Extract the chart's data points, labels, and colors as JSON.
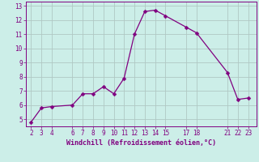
{
  "x": [
    2,
    3,
    4,
    6,
    7,
    8,
    9,
    10,
    11,
    12,
    13,
    14,
    15,
    17,
    18,
    21,
    22,
    23
  ],
  "y": [
    4.8,
    5.8,
    5.9,
    6.0,
    6.8,
    6.8,
    7.3,
    6.8,
    7.9,
    11.0,
    12.6,
    12.7,
    12.3,
    11.5,
    11.1,
    8.3,
    6.4,
    6.5
  ],
  "line_color": "#800080",
  "marker": "D",
  "marker_size": 2.5,
  "bg_color": "#cceee8",
  "grid_color": "#b0c8c4",
  "xlabel": "Windchill (Refroidissement éolien,°C)",
  "xlabel_color": "#800080",
  "tick_color": "#800080",
  "xlim": [
    1.5,
    23.8
  ],
  "ylim": [
    4.5,
    13.3
  ],
  "yticks": [
    5,
    6,
    7,
    8,
    9,
    10,
    11,
    12,
    13
  ],
  "xticks": [
    2,
    3,
    4,
    6,
    7,
    8,
    9,
    10,
    11,
    12,
    13,
    14,
    15,
    17,
    18,
    21,
    22,
    23
  ],
  "spine_color": "#800080",
  "label_fontsize": 6.0,
  "tick_fontsize": 5.5
}
